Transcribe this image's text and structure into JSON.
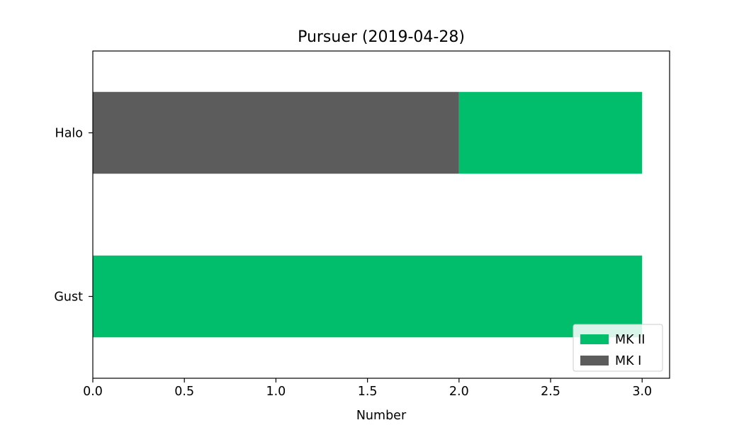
{
  "chart_data": {
    "type": "bar",
    "orientation": "horizontal",
    "stacked": true,
    "title": "Pursuer (2019-04-28)",
    "xlabel": "Number",
    "ylabel": "",
    "categories": [
      "Gust",
      "Halo"
    ],
    "series": [
      {
        "name": "MK II",
        "color": "#00be6c",
        "values": [
          3,
          1
        ]
      },
      {
        "name": "MK I",
        "color": "#5b5c5b",
        "values": [
          0,
          2
        ]
      }
    ],
    "xlim": [
      0,
      3.15
    ],
    "xticks": [
      0,
      0.5,
      1,
      1.5,
      2,
      2.5,
      3
    ],
    "xtick_labels": [
      "0.0",
      "0.5",
      "1.0",
      "1.5",
      "2.0",
      "2.5",
      "3.0"
    ],
    "grid": false,
    "legend_position": "lower-right"
  }
}
